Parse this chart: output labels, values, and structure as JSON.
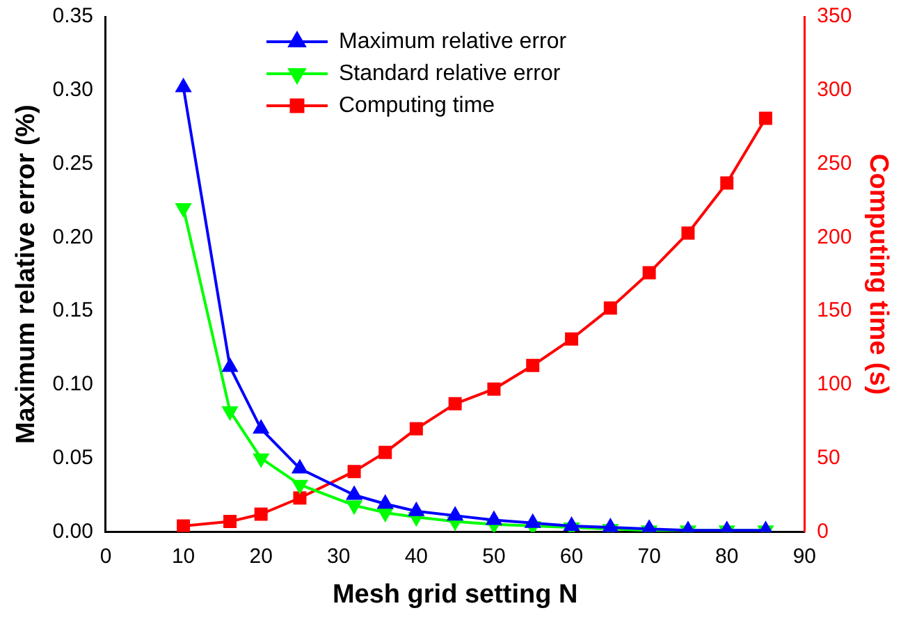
{
  "chart_data": {
    "type": "line",
    "xlabel": "Mesh grid setting N",
    "ylabel": "Maximum relative error (%)",
    "y2label": "Computing time (s)",
    "x": [
      10,
      16,
      20,
      25,
      32,
      36,
      40,
      45,
      50,
      55,
      60,
      65,
      70,
      75,
      80,
      85
    ],
    "xlim": [
      0,
      90
    ],
    "xticks": [
      0,
      10,
      20,
      30,
      40,
      50,
      60,
      70,
      80,
      90
    ],
    "ylim": [
      0,
      0.35
    ],
    "yticks": [
      {
        "value": 0,
        "label": "0.00"
      },
      {
        "value": 0.05,
        "label": "0.05"
      },
      {
        "value": 0.1,
        "label": "0.10"
      },
      {
        "value": 0.15,
        "label": "0.15"
      },
      {
        "value": 0.2,
        "label": "0.20"
      },
      {
        "value": 0.25,
        "label": "0.25"
      },
      {
        "value": 0.3,
        "label": "0.30"
      },
      {
        "value": 0.35,
        "label": "0.35"
      }
    ],
    "y2lim": [
      0,
      350
    ],
    "y2ticks": [
      0,
      50,
      100,
      150,
      200,
      250,
      300,
      350
    ],
    "grid": false,
    "legend": "top",
    "line_style": "solid",
    "series": [
      {
        "name": "Maximum relative error",
        "color": "#0000ff",
        "marker": "triangle",
        "values": [
          0.302,
          0.112,
          0.07,
          0.043,
          0.025,
          0.019,
          0.014,
          0.011,
          0.008,
          0.006,
          0.004,
          0.003,
          0.002,
          0.001,
          0.001,
          0.001
        ]
      },
      {
        "name": "Standard relative error",
        "color": "#00ff00",
        "marker": "triangle-down",
        "values": [
          0.22,
          0.082,
          0.05,
          0.032,
          0.018,
          0.013,
          0.01,
          0.007,
          0.005,
          0.004,
          0.003,
          0.002,
          0.001,
          0.001,
          0.001,
          0.001
        ]
      },
      {
        "name": "Computing time",
        "color": "#ff0000",
        "marker": "square",
        "axis": "y2",
        "values": [
          4,
          7,
          12,
          23,
          41,
          54,
          70,
          87,
          97,
          113,
          131,
          152,
          176,
          203,
          237,
          281
        ]
      }
    ]
  }
}
